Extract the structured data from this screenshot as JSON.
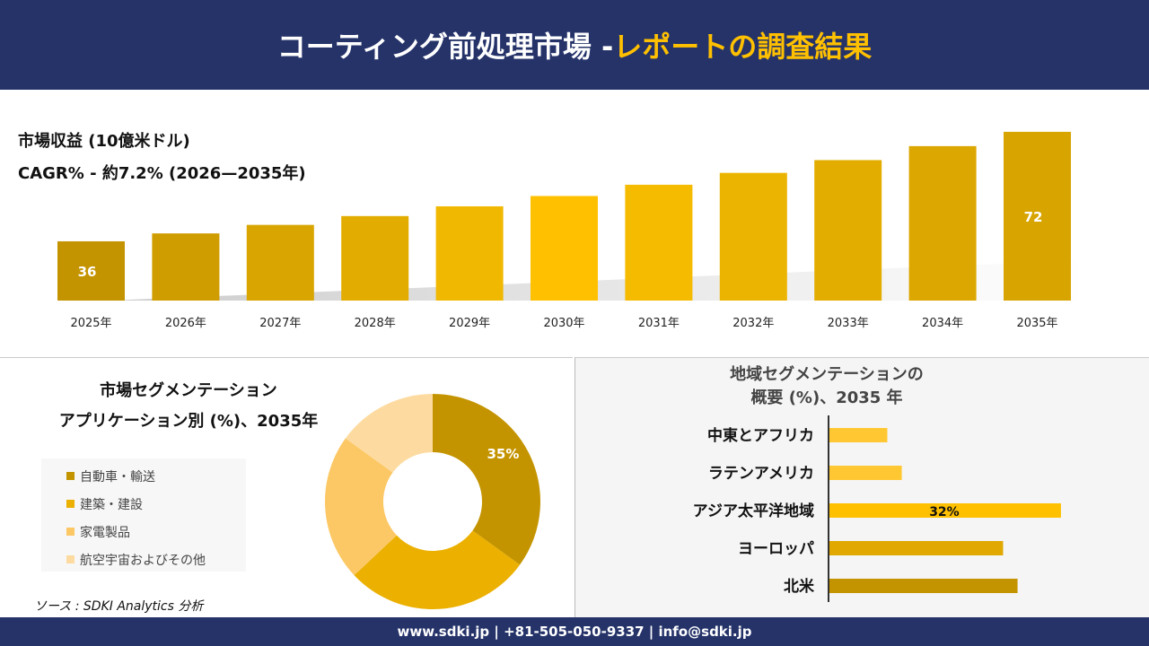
{
  "header": {
    "title_main": "コーティング前処理市場 - ",
    "title_highlight": "レポートの調査結果"
  },
  "colors": {
    "navy": "#253369",
    "accent": "#ffc000"
  },
  "chart_data": [
    {
      "type": "bar",
      "title": "市場収益 (10億米ドル)",
      "subtitle": "CAGR% - 約7.2% (2026—2035年)",
      "categories": [
        "2025年",
        "2026年",
        "2027年",
        "2028年",
        "2029年",
        "2030年",
        "2031年",
        "2032年",
        "2033年",
        "2034年",
        "2035年"
      ],
      "values": [
        36,
        38.6,
        41.4,
        44.3,
        47.5,
        50.9,
        54.6,
        58.5,
        62.7,
        67.3,
        72
      ],
      "data_labels": {
        "0": "36",
        "10": "72"
      },
      "colors": [
        "#c49400",
        "#d09d00",
        "#d9a500",
        "#e2ac00",
        "#f0b800",
        "#ffc000",
        "#f5bb00",
        "#ebb400",
        "#e3ad00",
        "#dba700",
        "#d7a400"
      ]
    },
    {
      "type": "pie",
      "title": "市場セグメンテーション アプリケーション別 (%)、2035年",
      "title_lines": [
        "市場セグメンテーション",
        "アプリケーション別 (%)、2035年"
      ],
      "categories": [
        "自動車・輸送",
        "建築・建設",
        "家電製品",
        "航空宇宙およびその他"
      ],
      "values": [
        35,
        28,
        22,
        15
      ],
      "data_labels": {
        "0": "35%"
      },
      "colors": [
        "#c49400",
        "#ebb000",
        "#fcc865",
        "#fddba0"
      ]
    },
    {
      "type": "bar",
      "orientation": "horizontal",
      "title": "地域セグメンテーションの 概要 (%)、2035 年",
      "title_lines": [
        "地域セグメンテーションの",
        "概要 (%)、2035 年"
      ],
      "categories": [
        "中東とアフリカ",
        "ラテンアメリカ",
        "アジア太平洋地域",
        "ヨーロッパ",
        "北米"
      ],
      "values": [
        8,
        10,
        32,
        24,
        26
      ],
      "data_labels": {
        "2": "32%"
      },
      "colors": [
        "#ffc832",
        "#ffc832",
        "#ffc000",
        "#e0a800",
        "#c49400"
      ]
    }
  ],
  "source": "ソース : SDKI Analytics 分析",
  "footer": "www.sdki.jp | +81-505-050-9337 | info@sdki.jp"
}
